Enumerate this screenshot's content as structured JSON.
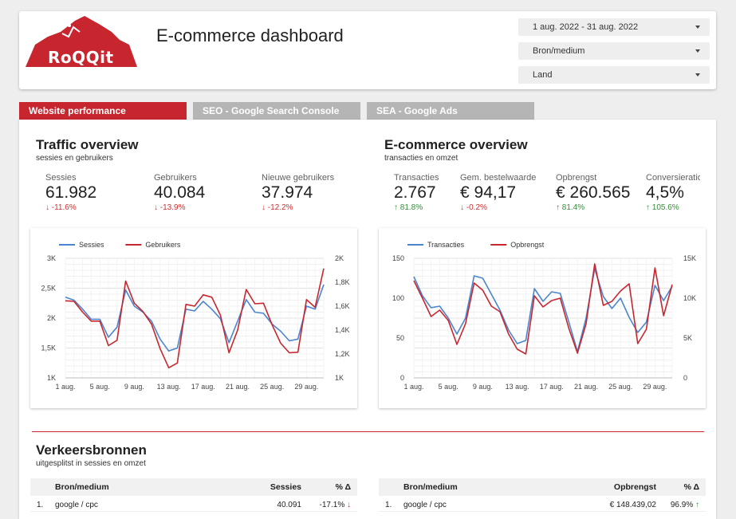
{
  "header": {
    "logo_text": "RoQQit",
    "title": "E-commerce dashboard",
    "filters": [
      {
        "value": "1 aug. 2022 - 31 aug. 2022"
      },
      {
        "value": "Bron/medium"
      },
      {
        "value": "Land"
      }
    ]
  },
  "colors": {
    "accent": "#c8262f",
    "series_blue": "#4a86d0",
    "series_red": "#c8262f",
    "tab_inactive": "#b5b5b5"
  },
  "tabs": [
    {
      "label": "Website performance",
      "active": true
    },
    {
      "label": "SEO - Google Search Console",
      "active": false
    },
    {
      "label": "SEA - Google Ads",
      "active": false
    }
  ],
  "traffic": {
    "title": "Traffic overview",
    "subtitle": "sessies en gebruikers",
    "kpis": [
      {
        "label": "Sessies",
        "value": "61.982",
        "delta": "-11.6%",
        "trend": "down"
      },
      {
        "label": "Gebruikers",
        "value": "40.084",
        "delta": "-13.9%",
        "trend": "down"
      },
      {
        "label": "Nieuwe gebruikers",
        "value": "37.974",
        "delta": "-12.2%",
        "trend": "down"
      }
    ]
  },
  "ecommerce": {
    "title": "E-commerce overview",
    "subtitle": "transacties en omzet",
    "kpis": [
      {
        "label": "Transacties",
        "value": "2.767",
        "delta": "81.8%",
        "trend": "up"
      },
      {
        "label": "Gem. bestelwaarde",
        "value": "€ 94,17",
        "delta": "-0.2%",
        "trend": "down"
      },
      {
        "label": "Opbrengst",
        "value": "€ 260.565",
        "delta": "81.4%",
        "trend": "up"
      },
      {
        "label": "Conversieratio",
        "value": "4,5%",
        "delta": "105.6%",
        "trend": "up"
      }
    ]
  },
  "sources": {
    "title": "Verkeersbronnen",
    "subtitle": "uitgesplitst in sessies en omzet",
    "left_table": {
      "headers": [
        "Bron/medium",
        "Sessies",
        "% Δ"
      ],
      "rows": [
        {
          "index": "1.",
          "source": "google / cpc",
          "value": "40.091",
          "delta": "-17.1%",
          "trend": "down"
        }
      ]
    },
    "right_table": {
      "headers": [
        "Bron/medium",
        "Opbrengst",
        "% Δ"
      ],
      "rows": [
        {
          "index": "1.",
          "source": "google / cpc",
          "value": "€ 148.439,02",
          "delta": "96.9%",
          "trend": "up"
        }
      ]
    }
  },
  "chart_data": [
    {
      "type": "line",
      "x_ticks": [
        "1 aug.",
        "5 aug.",
        "9 aug.",
        "13 aug.",
        "17 aug.",
        "21 aug.",
        "25 aug.",
        "29 aug."
      ],
      "y_ticks_left": [
        "3K",
        "2,5K",
        "2K",
        "1,5K",
        "1K"
      ],
      "y_ticks_right": [
        "2K",
        "1,8K",
        "1,6K",
        "1,4K",
        "1,2K",
        "1K"
      ],
      "ylim_left": [
        1000,
        3000
      ],
      "ylim_right": [
        1000,
        2000
      ],
      "legend_position": "top-left",
      "grid": true,
      "series": [
        {
          "name": "Sessies",
          "axis": "left",
          "color": "#4a86d0",
          "values": [
            2350,
            2300,
            2150,
            1980,
            1980,
            1680,
            1850,
            2470,
            2200,
            2100,
            1950,
            1650,
            1450,
            1500,
            2150,
            2120,
            2280,
            2150,
            1990,
            1590,
            1950,
            2310,
            2100,
            2080,
            1900,
            1780,
            1620,
            1650,
            2200,
            2150,
            2560
          ]
        },
        {
          "name": "Gebruikers",
          "axis": "left",
          "color": "#c8262f",
          "values": [
            2290,
            2280,
            2100,
            1950,
            1950,
            1540,
            1630,
            2620,
            2250,
            2110,
            1900,
            1490,
            1170,
            1250,
            2230,
            2200,
            2390,
            2350,
            2050,
            1420,
            1800,
            2480,
            2240,
            2250,
            1890,
            1580,
            1420,
            1430,
            2310,
            2180,
            2830
          ]
        }
      ]
    },
    {
      "type": "line",
      "x_ticks": [
        "1 aug.",
        "5 aug.",
        "9 aug.",
        "13 aug.",
        "17 aug.",
        "21 aug.",
        "25 aug.",
        "29 aug."
      ],
      "y_ticks_left": [
        "150",
        "100",
        "50",
        "0"
      ],
      "y_ticks_right": [
        "15K",
        "10K",
        "5K",
        "0"
      ],
      "ylim_left": [
        0,
        150
      ],
      "ylim_right": [
        0,
        15000
      ],
      "legend_position": "top-left",
      "grid": true,
      "series": [
        {
          "name": "Transacties",
          "axis": "left",
          "color": "#4a86d0",
          "values": [
            127,
            103,
            88,
            90,
            75,
            55,
            75,
            128,
            125,
            105,
            85,
            60,
            43,
            47,
            112,
            96,
            108,
            106,
            70,
            33,
            75,
            137,
            102,
            87,
            100,
            76,
            57,
            70,
            116,
            97,
            115
          ]
        },
        {
          "name": "Opbrengst",
          "axis": "right",
          "color": "#c8262f",
          "values": [
            12200,
            10000,
            7700,
            8500,
            7200,
            4200,
            6800,
            11900,
            11000,
            9000,
            8300,
            5500,
            3600,
            3000,
            10300,
            8900,
            9700,
            10000,
            6200,
            3100,
            6800,
            14300,
            9100,
            9600,
            10900,
            11800,
            4300,
            6100,
            13800,
            7800,
            11700
          ]
        }
      ]
    }
  ]
}
